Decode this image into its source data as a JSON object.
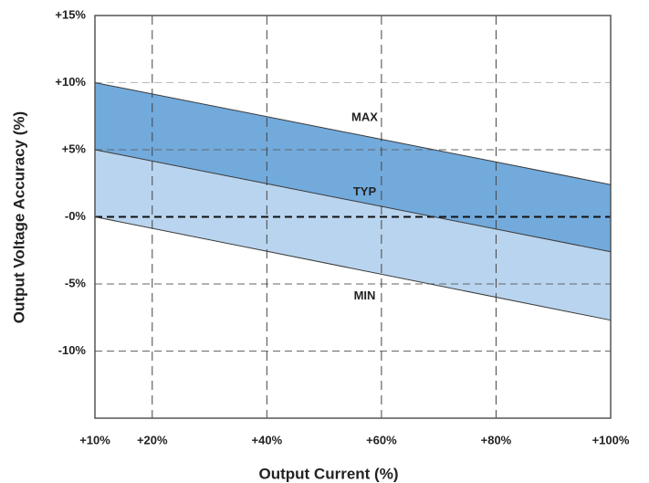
{
  "chart_data": {
    "type": "line",
    "xlabel": "Output Current (%)",
    "ylabel": "Output Voltage Accuracy (%)",
    "xlim": [
      10,
      100
    ],
    "xticks": [
      {
        "value": 10,
        "label": "+10%"
      },
      {
        "value": 20,
        "label": "+20%"
      },
      {
        "value": 40,
        "label": "+40%"
      },
      {
        "value": 60,
        "label": "+60%"
      },
      {
        "value": 80,
        "label": "+80%"
      },
      {
        "value": 100,
        "label": "+100%"
      }
    ],
    "ylim": [
      -15,
      15
    ],
    "yticks": [
      {
        "value": 15,
        "label": "+15%"
      },
      {
        "value": 10,
        "label": "+10%"
      },
      {
        "value": 5,
        "label": "+5%"
      },
      {
        "value": 0,
        "label": "-0%"
      },
      {
        "value": -5,
        "label": "-5%"
      },
      {
        "value": -10,
        "label": "-10%"
      }
    ],
    "grid": true,
    "x": [
      10,
      100
    ],
    "series": [
      {
        "name": "MAX",
        "color": "#3a3a3a",
        "fill": "#72aadc",
        "values": [
          10,
          2.4
        ]
      },
      {
        "name": "TYP",
        "color": "#3a3a3a",
        "fill": "#b9d4ee",
        "values": [
          5,
          -2.6
        ]
      },
      {
        "name": "MIN",
        "color": "#3a3a3a",
        "values": [
          0,
          -7.7
        ]
      }
    ]
  }
}
